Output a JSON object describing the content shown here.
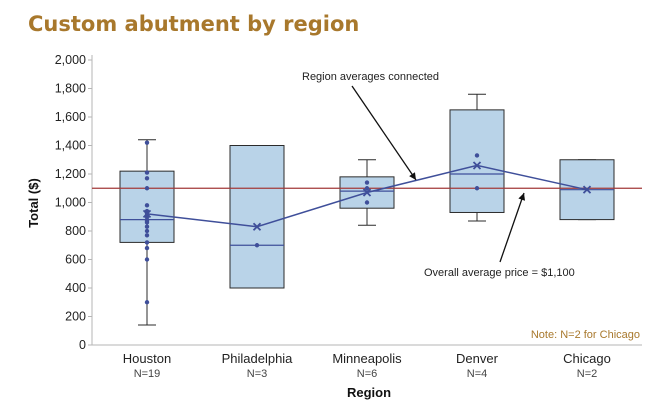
{
  "title": "Custom abutment by region",
  "chart_data": {
    "type": "boxplot",
    "title": "Custom abutment by region",
    "xlabel": "Region",
    "ylabel": "Total ($)",
    "ylim": [
      0,
      2000
    ],
    "yticks": [
      0,
      200,
      400,
      600,
      800,
      1000,
      1200,
      1400,
      1600,
      1800,
      2000
    ],
    "ytick_labels": [
      "0",
      "200",
      "400",
      "600",
      "800",
      "1,000",
      "1,200",
      "1,400",
      "1,600",
      "1,800",
      "2,000"
    ],
    "grid": false,
    "categories": [
      {
        "name": "Houston",
        "n_label": "N=19",
        "whisker_low": 140,
        "q1": 720,
        "median": 880,
        "q3": 1220,
        "whisker_high": 1440,
        "mean": 920,
        "points": [
          1420,
          1210,
          1170,
          1100,
          980,
          940,
          920,
          900,
          880,
          870,
          860,
          830,
          800,
          770,
          720,
          680,
          600,
          300
        ]
      },
      {
        "name": "Philadelphia",
        "n_label": "N=3",
        "whisker_low": 400,
        "q1": 400,
        "median": 700,
        "q3": 1400,
        "whisker_high": 1400,
        "mean": 830,
        "points": [
          700
        ]
      },
      {
        "name": "Minneapolis",
        "n_label": "N=6",
        "whisker_low": 840,
        "q1": 960,
        "median": 1080,
        "q3": 1180,
        "whisker_high": 1300,
        "mean": 1070,
        "points": [
          1140,
          1100,
          1000
        ]
      },
      {
        "name": "Denver",
        "n_label": "N=4",
        "whisker_low": 870,
        "q1": 930,
        "median": 1200,
        "q3": 1650,
        "whisker_high": 1760,
        "mean": 1260,
        "points": [
          1330,
          1100
        ]
      },
      {
        "name": "Chicago",
        "n_label": "N=2",
        "whisker_low": 880,
        "q1": 880,
        "median": 1090,
        "q3": 1300,
        "whisker_high": 1300,
        "mean": 1090,
        "points": []
      }
    ],
    "reference_line": {
      "value": 1100,
      "label": "Overall average price = $1,100"
    },
    "mean_line_label": "Region averages connected",
    "note": "Note: N=2 for Chicago",
    "colors": {
      "box_fill": "#b9d3e8",
      "box_stroke": "#2b2b2b",
      "mean_line": "#3f4f9a",
      "points": "#3f4f9a",
      "reference_line": "#a33a3a",
      "title": "#a8782c"
    }
  }
}
